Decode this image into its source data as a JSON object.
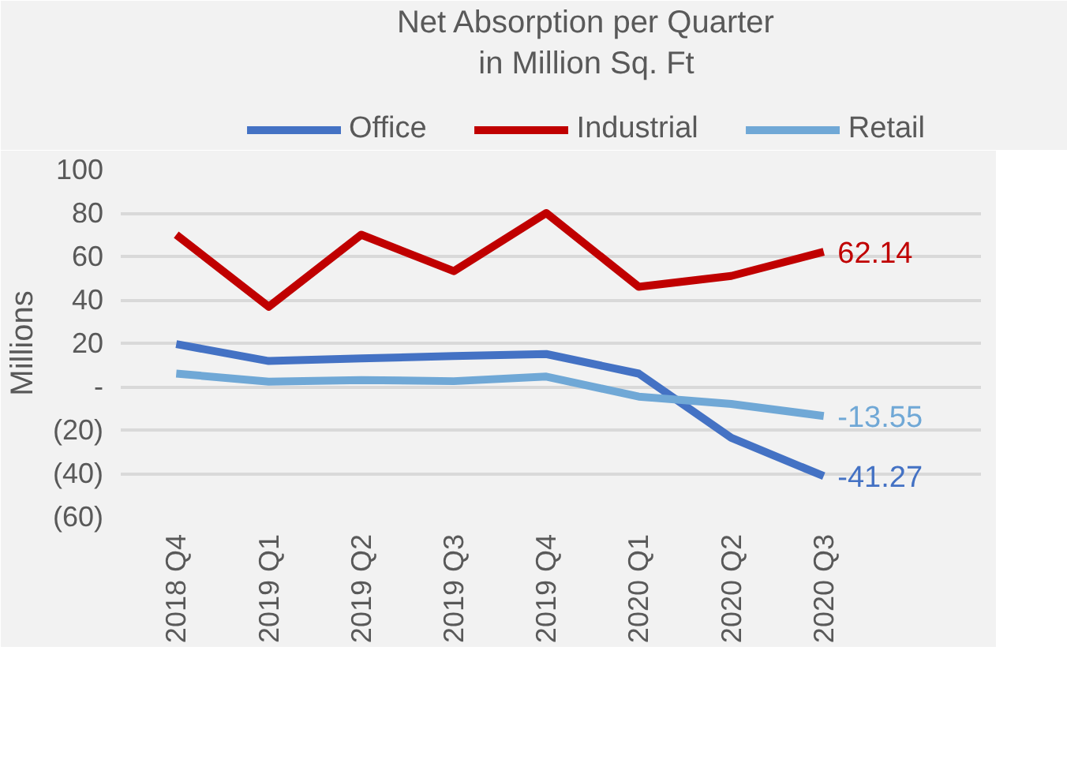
{
  "chart_data": {
    "type": "line",
    "title": "Net Absorption per Quarter\nin Million Sq. Ft",
    "ylabel": "Millions",
    "categories": [
      "2018 Q4",
      "2019 Q1",
      "2019 Q2",
      "2019 Q3",
      "2019 Q4",
      "2020 Q1",
      "2020 Q2",
      "2020 Q3"
    ],
    "series": [
      {
        "name": "Office",
        "color": "#4472c4",
        "values": [
          19.6,
          11.8,
          13,
          14.1,
          15,
          6,
          -23.6,
          -41.27
        ],
        "value_labels": [
          null,
          null,
          null,
          null,
          null,
          null,
          null,
          "-41.27"
        ]
      },
      {
        "name": "Industrial",
        "color": "#c00000",
        "values": [
          70,
          36.8,
          70,
          53.2,
          80,
          46,
          51,
          62.14
        ],
        "value_labels": [
          null,
          null,
          null,
          null,
          null,
          null,
          null,
          "62.14"
        ]
      },
      {
        "name": "Retail",
        "color": "#70a8d6",
        "values": [
          6,
          2.3,
          3,
          2.5,
          4.6,
          -4.6,
          -8,
          -13.55
        ],
        "value_labels": [
          null,
          null,
          null,
          null,
          null,
          null,
          null,
          "-13.55"
        ]
      }
    ],
    "ylim": [
      -60,
      100
    ],
    "yticks": [
      {
        "value": -60,
        "label": "(60)"
      },
      {
        "value": -40,
        "label": "(40)"
      },
      {
        "value": -20,
        "label": "(20)"
      },
      {
        "value": 0,
        "label": "-"
      },
      20,
      40,
      60,
      80,
      100
    ],
    "grid": "y",
    "legend": "top",
    "marker": "none",
    "line_style": "solid"
  }
}
